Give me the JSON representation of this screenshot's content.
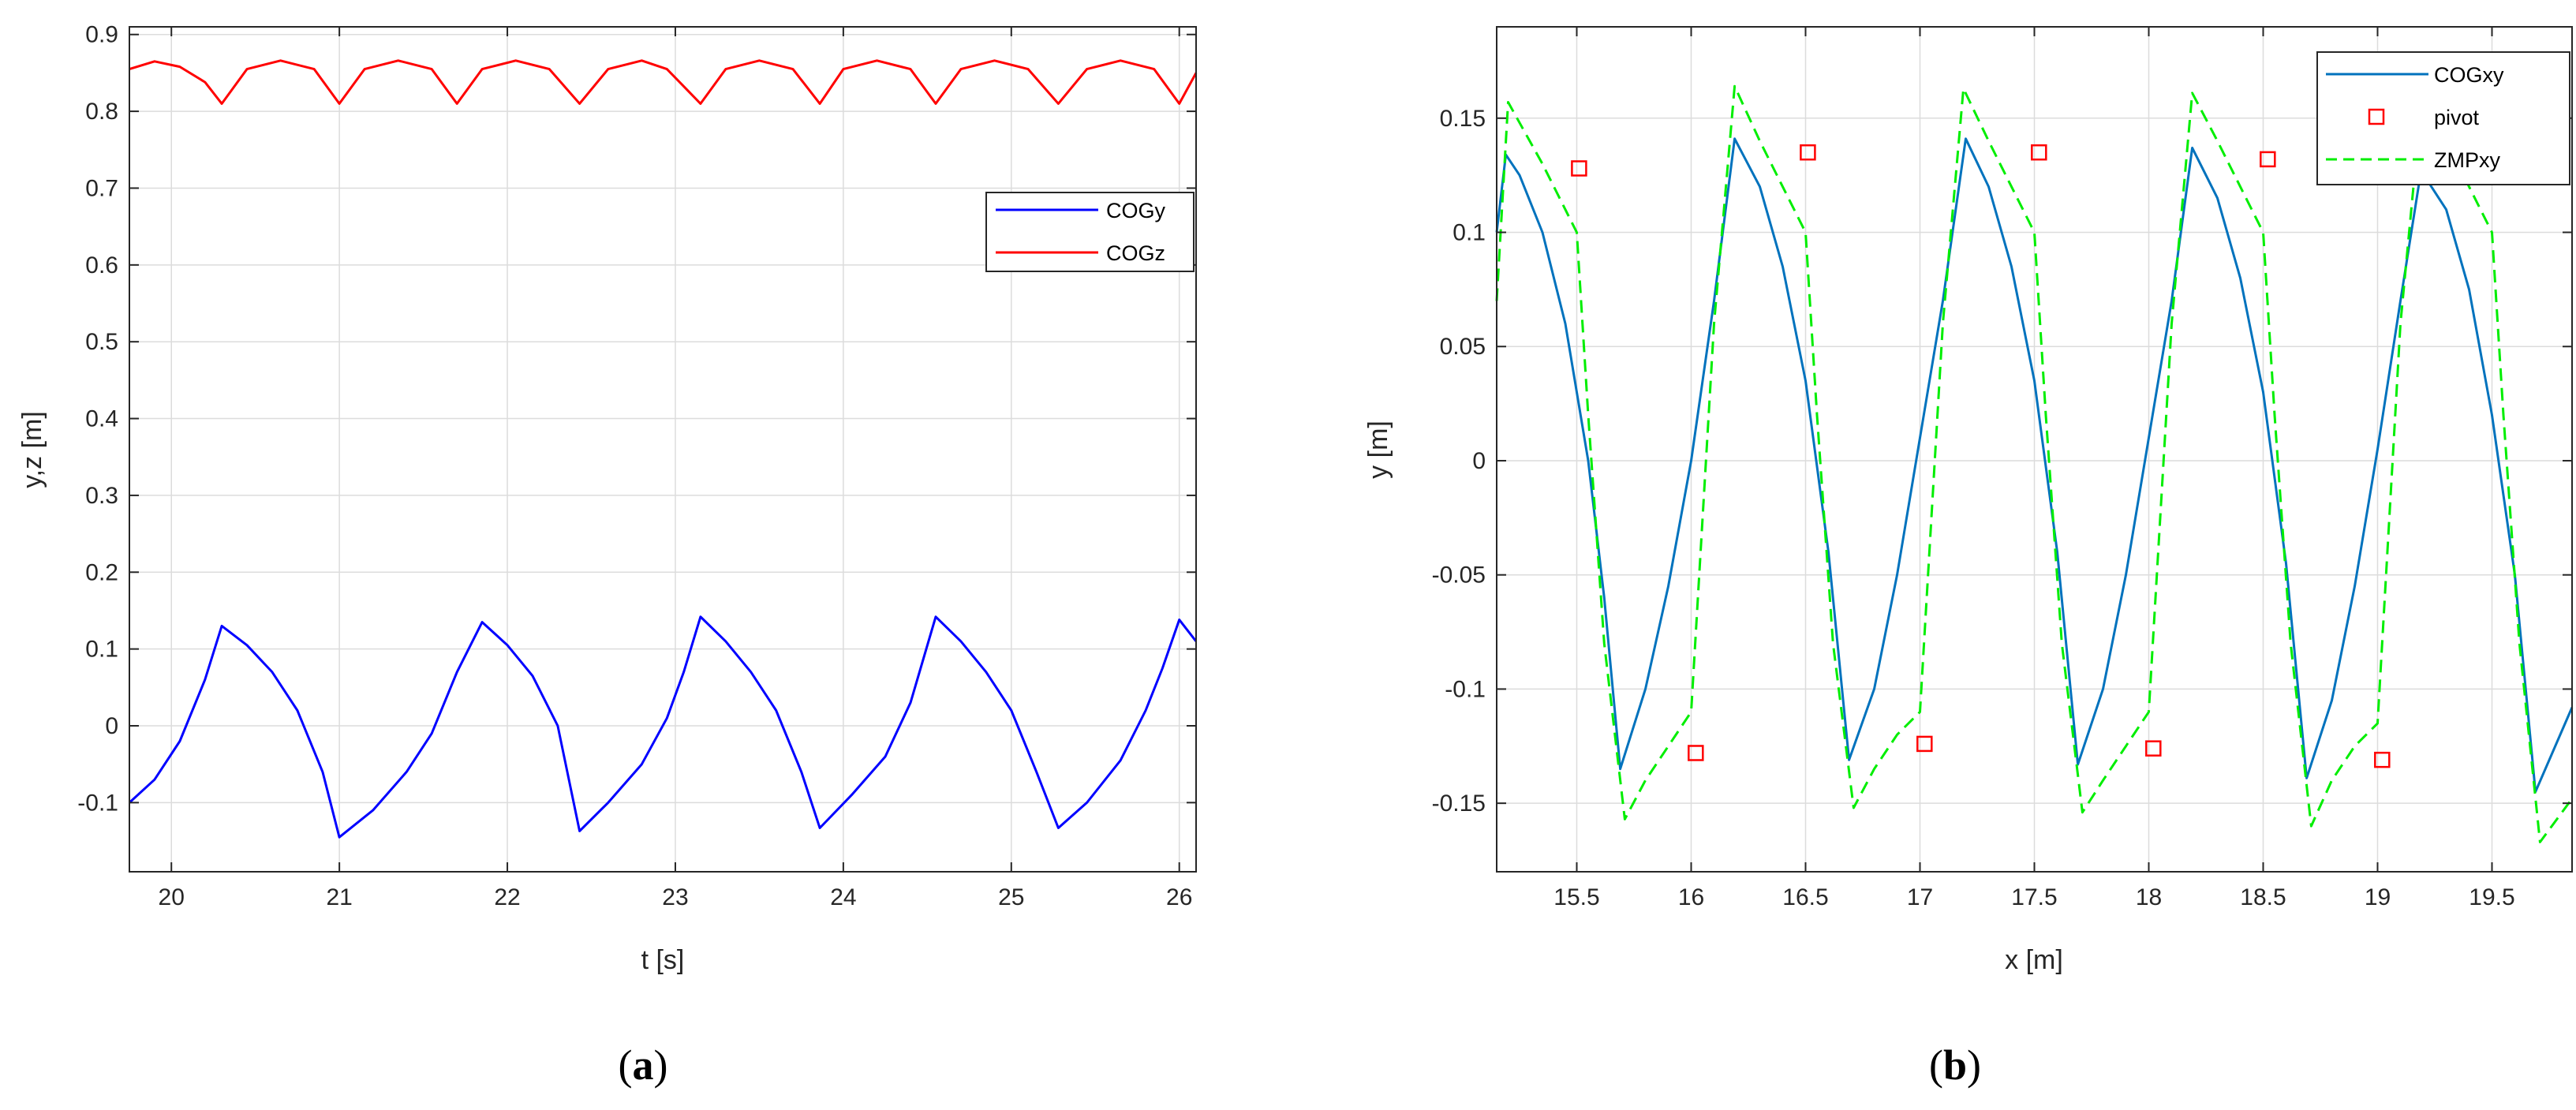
{
  "chart_data": [
    {
      "type": "line",
      "panel": "a",
      "caption_letter": "a",
      "xlabel": "t [s]",
      "ylabel": "y,z [m]",
      "xlim": [
        19.75,
        26.1
      ],
      "ylim": [
        -0.19,
        0.91
      ],
      "xticks": [
        20,
        21,
        22,
        23,
        24,
        25,
        26
      ],
      "yticks": [
        -0.1,
        0,
        0.1,
        0.2,
        0.3,
        0.4,
        0.5,
        0.6,
        0.7,
        0.8,
        0.9
      ],
      "ytick_labels": [
        "-0.1",
        "0",
        "0.1",
        "0.2",
        "0.3",
        "0.4",
        "0.5",
        "0.6",
        "0.7",
        "0.8",
        "0.9"
      ],
      "grid": true,
      "legend_position": "right",
      "series": [
        {
          "name": "COGy",
          "color": "#0000ff",
          "x": [
            19.75,
            19.9,
            20.05,
            20.2,
            20.3,
            20.45,
            20.6,
            20.75,
            20.9,
            21.0,
            21.2,
            21.4,
            21.55,
            21.7,
            21.85,
            22.0,
            22.15,
            22.3,
            22.43,
            22.6,
            22.8,
            22.95,
            23.05,
            23.15,
            23.3,
            23.45,
            23.6,
            23.75,
            23.86,
            24.05,
            24.25,
            24.4,
            24.55,
            24.7,
            24.85,
            25.0,
            25.15,
            25.28,
            25.45,
            25.65,
            25.8,
            25.9,
            26.0,
            26.1
          ],
          "y": [
            -0.1,
            -0.07,
            -0.02,
            0.06,
            0.13,
            0.105,
            0.07,
            0.02,
            -0.06,
            -0.145,
            -0.11,
            -0.06,
            -0.01,
            0.07,
            0.135,
            0.105,
            0.065,
            0.0,
            -0.137,
            -0.1,
            -0.05,
            0.01,
            0.07,
            0.142,
            0.11,
            0.07,
            0.02,
            -0.06,
            -0.133,
            -0.09,
            -0.04,
            0.03,
            0.142,
            0.11,
            0.07,
            0.02,
            -0.06,
            -0.133,
            -0.1,
            -0.045,
            0.02,
            0.075,
            0.138,
            0.11
          ]
        },
        {
          "name": "COGz",
          "color": "#ff0000",
          "x": [
            19.75,
            19.9,
            20.05,
            20.2,
            20.3,
            20.45,
            20.65,
            20.85,
            21.0,
            21.15,
            21.35,
            21.55,
            21.7,
            21.85,
            22.05,
            22.25,
            22.43,
            22.6,
            22.8,
            22.95,
            23.15,
            23.3,
            23.5,
            23.7,
            23.86,
            24.0,
            24.2,
            24.4,
            24.55,
            24.7,
            24.9,
            25.1,
            25.28,
            25.45,
            25.65,
            25.85,
            26.0,
            26.1
          ],
          "y": [
            0.855,
            0.865,
            0.858,
            0.838,
            0.81,
            0.855,
            0.866,
            0.855,
            0.81,
            0.855,
            0.866,
            0.855,
            0.81,
            0.855,
            0.866,
            0.855,
            0.81,
            0.855,
            0.866,
            0.855,
            0.81,
            0.855,
            0.866,
            0.855,
            0.81,
            0.855,
            0.866,
            0.855,
            0.81,
            0.855,
            0.866,
            0.855,
            0.81,
            0.855,
            0.866,
            0.855,
            0.81,
            0.85
          ]
        }
      ]
    },
    {
      "type": "line",
      "panel": "b",
      "caption_letter": "b",
      "xlabel": "x [m]",
      "ylabel": "y [m]",
      "xlim": [
        15.15,
        19.85
      ],
      "ylim": [
        -0.18,
        0.19
      ],
      "xticks": [
        15.5,
        16,
        16.5,
        17,
        17.5,
        18,
        18.5,
        19,
        19.5
      ],
      "yticks": [
        -0.15,
        -0.1,
        -0.05,
        0,
        0.05,
        0.1,
        0.15
      ],
      "ytick_labels": [
        "-0.15",
        "-0.1",
        "-0.05",
        "0",
        "0.05",
        "0.1",
        "0.15"
      ],
      "grid": true,
      "legend_position": "top-right",
      "series": [
        {
          "name": "COGxy",
          "color": "#0072bd",
          "style": "solid",
          "x": [
            15.15,
            15.19,
            15.25,
            15.35,
            15.45,
            15.55,
            15.62,
            15.69,
            15.8,
            15.9,
            16.0,
            16.1,
            16.19,
            16.3,
            16.4,
            16.5,
            16.6,
            16.69,
            16.8,
            16.9,
            17.0,
            17.1,
            17.2,
            17.3,
            17.4,
            17.5,
            17.6,
            17.69,
            17.8,
            17.9,
            18.0,
            18.1,
            18.19,
            18.3,
            18.4,
            18.5,
            18.6,
            18.69,
            18.8,
            18.9,
            19.0,
            19.1,
            19.19,
            19.3,
            19.4,
            19.5,
            19.6,
            19.69,
            19.85
          ],
          "y": [
            0.1,
            0.134,
            0.125,
            0.1,
            0.06,
            0.0,
            -0.06,
            -0.135,
            -0.1,
            -0.055,
            0.0,
            0.07,
            0.141,
            0.12,
            0.085,
            0.035,
            -0.04,
            -0.131,
            -0.1,
            -0.05,
            0.01,
            0.07,
            0.141,
            0.12,
            0.085,
            0.035,
            -0.04,
            -0.133,
            -0.1,
            -0.05,
            0.01,
            0.07,
            0.137,
            0.115,
            0.08,
            0.03,
            -0.045,
            -0.139,
            -0.105,
            -0.055,
            0.005,
            0.07,
            0.127,
            0.11,
            0.075,
            0.02,
            -0.05,
            -0.145,
            -0.108
          ]
        },
        {
          "name": "pivot",
          "color": "#ff0000",
          "style": "square-marker",
          "x": [
            15.51,
            16.02,
            16.51,
            17.02,
            17.52,
            18.02,
            18.52,
            19.02
          ],
          "y": [
            0.128,
            -0.128,
            0.135,
            -0.124,
            0.135,
            -0.126,
            0.132,
            -0.131
          ]
        },
        {
          "name": "ZMPxy",
          "color": "#00ee00",
          "style": "dashed",
          "x": [
            15.15,
            15.2,
            15.35,
            15.45,
            15.5,
            15.55,
            15.62,
            15.71,
            15.8,
            15.9,
            16.0,
            16.1,
            16.19,
            16.3,
            16.45,
            16.5,
            16.55,
            16.62,
            16.71,
            16.8,
            16.9,
            17.0,
            17.1,
            17.19,
            17.3,
            17.45,
            17.5,
            17.55,
            17.62,
            17.71,
            17.8,
            17.9,
            18.0,
            18.1,
            18.19,
            18.3,
            18.45,
            18.5,
            18.55,
            18.62,
            18.71,
            18.8,
            18.9,
            19.0,
            19.1,
            19.19,
            19.3,
            19.45,
            19.5,
            19.55,
            19.62,
            19.71,
            19.85
          ],
          "y": [
            0.07,
            0.157,
            0.13,
            0.11,
            0.1,
            0.02,
            -0.08,
            -0.157,
            -0.14,
            -0.125,
            -0.11,
            0.06,
            0.164,
            0.14,
            0.11,
            0.1,
            0.02,
            -0.08,
            -0.152,
            -0.135,
            -0.12,
            -0.11,
            0.06,
            0.163,
            0.14,
            0.11,
            0.1,
            0.02,
            -0.08,
            -0.154,
            -0.14,
            -0.125,
            -0.11,
            0.06,
            0.161,
            0.14,
            0.11,
            0.1,
            0.02,
            -0.08,
            -0.16,
            -0.14,
            -0.125,
            -0.115,
            0.06,
            0.155,
            0.14,
            0.11,
            0.1,
            0.02,
            -0.08,
            -0.167,
            -0.148
          ]
        }
      ]
    }
  ]
}
